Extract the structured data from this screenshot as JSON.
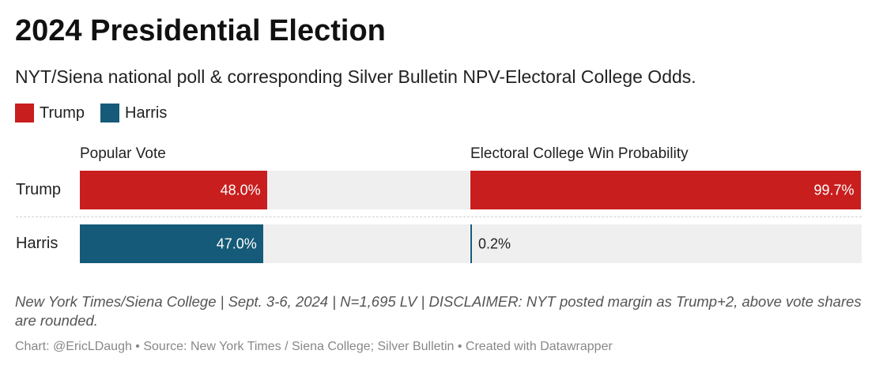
{
  "title": "2024 Presidential Election",
  "subtitle": "NYT/Siena national poll & corresponding Silver Bulletin NPV-Electoral College Odds.",
  "legend": [
    {
      "label": "Trump",
      "color": "#c81e1e"
    },
    {
      "label": "Harris",
      "color": "#155a78"
    }
  ],
  "chart_data": {
    "type": "bar",
    "orientation": "horizontal",
    "title": "2024 Presidential Election",
    "categories": [
      "Trump",
      "Harris"
    ],
    "panels": [
      {
        "header": "Popular Vote",
        "values": [
          48.0,
          47.0
        ],
        "labels": [
          "48.0%",
          "47.0%"
        ],
        "xlim": [
          0,
          100
        ]
      },
      {
        "header": "Electoral College Win Probability",
        "values": [
          99.7,
          0.2
        ],
        "labels": [
          "99.7%",
          "0.2%"
        ],
        "xlim": [
          0,
          100
        ]
      }
    ],
    "colors": [
      "#c81e1e",
      "#155a78"
    ],
    "track_color": "#efefef"
  },
  "notes": "New York Times/Siena College | Sept. 3-6, 2024 | N=1,695 LV | DISCLAIMER: NYT posted margin as Trump+2, above vote shares are rounded.",
  "footer": "Chart: @EricLDaugh • Source: New York Times / Siena College; Silver Bulletin • Created with Datawrapper"
}
